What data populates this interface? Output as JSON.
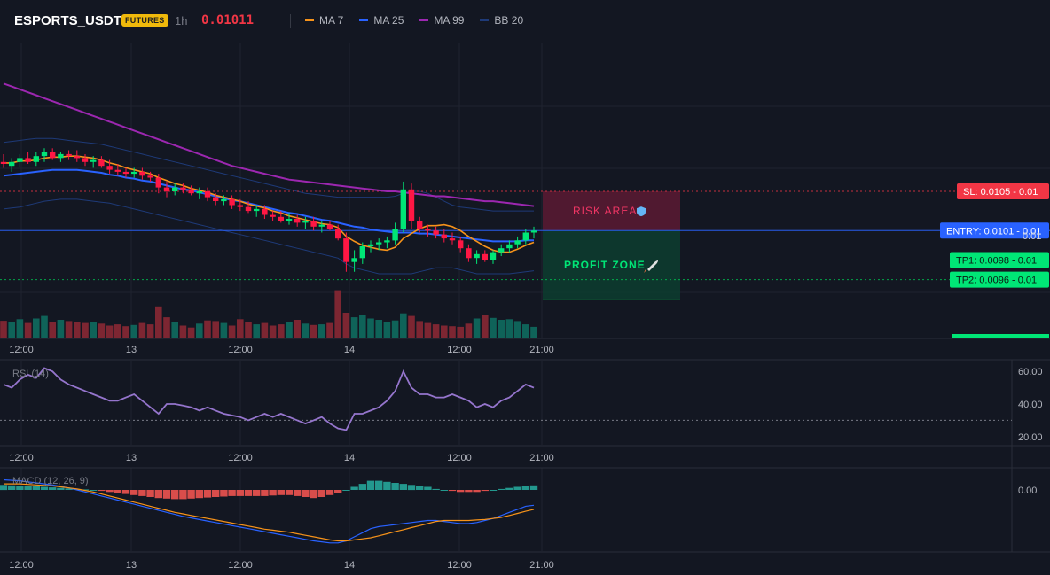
{
  "header": {
    "symbol": "ESPORTS_USDT",
    "badge": "FUTURES",
    "timeframe": "1h",
    "price": "0.01011",
    "legend": [
      {
        "label": "MA 7",
        "color": "#f7931a"
      },
      {
        "label": "MA 25",
        "color": "#2962ff"
      },
      {
        "label": "MA 99",
        "color": "#9c27b0"
      },
      {
        "label": "BB 20",
        "color": "#1e3a78"
      }
    ]
  },
  "colors": {
    "up": "#089981",
    "down": "#f23645",
    "up_bright": "#00e676",
    "down_bright": "#ff1744",
    "bg": "#131722",
    "grid": "#1f2330"
  },
  "time_axis": {
    "labels": [
      "12:00",
      "13",
      "12:00",
      "14",
      "12:00",
      "21:00"
    ]
  },
  "chart_data": [
    {
      "type": "candlestick",
      "name": "price",
      "ylim": [
        0.009,
        0.012
      ],
      "price_tag": "0.01",
      "levels": [
        {
          "label": "SL: 0.0105",
          "value": 0.0105,
          "tag": "0.01",
          "color": "#f23645"
        },
        {
          "label": "ENTRY: 0.0101",
          "value": 0.0101,
          "tag": "0.01",
          "color": "#2962ff"
        },
        {
          "label": "TP1: 0.0098",
          "value": 0.0098,
          "tag": "0.01",
          "color": "#00c853"
        },
        {
          "label": "TP2: 0.0096",
          "value": 0.0096,
          "tag": "0.01",
          "color": "#00c853"
        }
      ],
      "zones": {
        "risk_label": "RISK AREA",
        "profit_label": "PROFIT ZONE",
        "risk_top": 0.0105,
        "entry": 0.0101,
        "profit_bottom": 0.0094
      },
      "candles": [
        [
          0.0108,
          0.01088,
          0.01074,
          0.01078
        ],
        [
          0.01076,
          0.01084,
          0.0107,
          0.0108
        ],
        [
          0.0108,
          0.01088,
          0.01075,
          0.01084
        ],
        [
          0.01084,
          0.0109,
          0.01078,
          0.0108
        ],
        [
          0.0108,
          0.0109,
          0.01076,
          0.01086
        ],
        [
          0.01086,
          0.01094,
          0.0108,
          0.0109
        ],
        [
          0.0109,
          0.01094,
          0.01082,
          0.01084
        ],
        [
          0.01084,
          0.0109,
          0.0108,
          0.01088
        ],
        [
          0.01088,
          0.01092,
          0.01082,
          0.01086
        ],
        [
          0.01086,
          0.01092,
          0.0108,
          0.01084
        ],
        [
          0.01084,
          0.01088,
          0.01076,
          0.0108
        ],
        [
          0.0108,
          0.01086,
          0.01074,
          0.01082
        ],
        [
          0.01082,
          0.01086,
          0.01074,
          0.01076
        ],
        [
          0.01076,
          0.01082,
          0.01068,
          0.01072
        ],
        [
          0.01072,
          0.01078,
          0.01066,
          0.0107
        ],
        [
          0.0107,
          0.01074,
          0.01064,
          0.01068
        ],
        [
          0.01068,
          0.01074,
          0.01064,
          0.0107
        ],
        [
          0.0107,
          0.01074,
          0.01062,
          0.01066
        ],
        [
          0.01066,
          0.0107,
          0.0106,
          0.01064
        ],
        [
          0.01064,
          0.01068,
          0.01048,
          0.01054
        ],
        [
          0.01054,
          0.0106,
          0.01044,
          0.0105
        ],
        [
          0.0105,
          0.01058,
          0.01046,
          0.01054
        ],
        [
          0.01054,
          0.01058,
          0.01048,
          0.01052
        ],
        [
          0.01052,
          0.01056,
          0.01046,
          0.01048
        ],
        [
          0.01048,
          0.01054,
          0.01042,
          0.0105
        ],
        [
          0.0105,
          0.01054,
          0.0104,
          0.01044
        ],
        [
          0.01044,
          0.01048,
          0.01036,
          0.0104
        ],
        [
          0.0104,
          0.01046,
          0.01036,
          0.01042
        ],
        [
          0.01042,
          0.01046,
          0.01032,
          0.01036
        ],
        [
          0.01036,
          0.01042,
          0.0103,
          0.01034
        ],
        [
          0.01034,
          0.0104,
          0.01028,
          0.0103
        ],
        [
          0.0103,
          0.01036,
          0.01024,
          0.01032
        ],
        [
          0.01032,
          0.01036,
          0.01022,
          0.01026
        ],
        [
          0.01026,
          0.0103,
          0.0102,
          0.01024
        ],
        [
          0.01024,
          0.0103,
          0.01018,
          0.0102
        ],
        [
          0.0102,
          0.01028,
          0.01016,
          0.01022
        ],
        [
          0.01022,
          0.01026,
          0.01014,
          0.01018
        ],
        [
          0.01018,
          0.01024,
          0.01012,
          0.0102
        ],
        [
          0.0102,
          0.01024,
          0.0101,
          0.01014
        ],
        [
          0.01014,
          0.0102,
          0.01008,
          0.01016
        ],
        [
          0.01016,
          0.0102,
          0.0101,
          0.01012
        ],
        [
          0.01012,
          0.01016,
          0.01,
          0.01002
        ],
        [
          0.01002,
          0.01008,
          0.00968,
          0.00978
        ],
        [
          0.00978,
          0.0099,
          0.00968,
          0.00982
        ],
        [
          0.00982,
          0.00998,
          0.00976,
          0.00994
        ],
        [
          0.00994,
          0.01,
          0.00988,
          0.00996
        ],
        [
          0.00996,
          0.01002,
          0.0099,
          0.00998
        ],
        [
          0.00998,
          0.01004,
          0.00992,
          0.01
        ],
        [
          0.01,
          0.01018,
          0.00996,
          0.01012
        ],
        [
          0.01012,
          0.0106,
          0.01008,
          0.01052
        ],
        [
          0.01052,
          0.01058,
          0.01012,
          0.0102
        ],
        [
          0.0102,
          0.01024,
          0.01008,
          0.01012
        ],
        [
          0.01012,
          0.01016,
          0.01004,
          0.0101
        ],
        [
          0.0101,
          0.01014,
          0.01002,
          0.01006
        ],
        [
          0.01006,
          0.01012,
          0.00998,
          0.01002
        ],
        [
          0.01002,
          0.01008,
          0.00996,
          0.01
        ],
        [
          0.01,
          0.01004,
          0.00988,
          0.00992
        ],
        [
          0.00992,
          0.00996,
          0.00978,
          0.00982
        ],
        [
          0.00982,
          0.0099,
          0.00976,
          0.00986
        ],
        [
          0.00986,
          0.0099,
          0.00978,
          0.0098
        ],
        [
          0.0098,
          0.0099,
          0.00976,
          0.00988
        ],
        [
          0.00988,
          0.00996,
          0.00984,
          0.00992
        ],
        [
          0.00992,
          0.01,
          0.00988,
          0.00996
        ],
        [
          0.00996,
          0.01004,
          0.00992,
          0.01
        ],
        [
          0.01,
          0.01012,
          0.00996,
          0.01008
        ],
        [
          0.01008,
          0.01014,
          0.01002,
          0.0101
        ]
      ],
      "volumes": [
        55,
        52,
        60,
        48,
        62,
        70,
        50,
        58,
        54,
        50,
        48,
        52,
        46,
        40,
        44,
        38,
        42,
        48,
        44,
        100,
        66,
        52,
        40,
        34,
        46,
        56,
        54,
        48,
        40,
        60,
        52,
        44,
        48,
        40,
        44,
        50,
        58,
        46,
        42,
        44,
        48,
        150,
        80,
        66,
        72,
        62,
        58,
        52,
        56,
        78,
        70,
        54,
        48,
        44,
        40,
        38,
        36,
        46,
        62,
        74,
        64,
        58,
        60,
        54,
        44,
        36
      ],
      "ma7": [
        0.01079,
        0.01079,
        0.01081,
        0.01081,
        0.01082,
        0.01084,
        0.01085,
        0.01085,
        0.01086,
        0.01086,
        0.01085,
        0.01084,
        0.01082,
        0.01079,
        0.01077,
        0.01074,
        0.01072,
        0.0107,
        0.01068,
        0.01064,
        0.01061,
        0.01058,
        0.01056,
        0.01053,
        0.01051,
        0.01049,
        0.01046,
        0.01044,
        0.01042,
        0.0104,
        0.01037,
        0.01035,
        0.01033,
        0.0103,
        0.01028,
        0.01025,
        0.01023,
        0.01021,
        0.01019,
        0.01017,
        0.01016,
        0.01013,
        0.01004,
        0.00999,
        0.00995,
        0.00993,
        0.00991,
        0.0099,
        0.00993,
        0.01002,
        0.01007,
        0.01012,
        0.01015,
        0.01015,
        0.01016,
        0.01014,
        0.0101,
        0.01004,
        0.00999,
        0.00994,
        0.0099,
        0.00988,
        0.00988,
        0.00991,
        0.00995,
        0.00998
      ],
      "ma25": [
        0.01066,
        0.01067,
        0.01068,
        0.01069,
        0.0107,
        0.01071,
        0.01072,
        0.01072,
        0.01072,
        0.01072,
        0.01071,
        0.0107,
        0.01069,
        0.01067,
        0.01066,
        0.01064,
        0.01063,
        0.01061,
        0.0106,
        0.01058,
        0.01056,
        0.01054,
        0.01052,
        0.01051,
        0.01049,
        0.01047,
        0.01045,
        0.01043,
        0.01041,
        0.0104,
        0.01038,
        0.01036,
        0.01034,
        0.01032,
        0.0103,
        0.01028,
        0.01027,
        0.01025,
        0.01023,
        0.01021,
        0.0102,
        0.01018,
        0.01016,
        0.01014,
        0.01013,
        0.01011,
        0.0101,
        0.01009,
        0.01008,
        0.01008,
        0.01008,
        0.01007,
        0.01007,
        0.01006,
        0.01005,
        0.01004,
        0.01003,
        0.01002,
        0.01001,
        0.01,
        0.00999,
        0.00999,
        0.00999,
        0.00999,
        0.01,
        0.01
      ],
      "ma99": [
        0.0116,
        0.01157,
        0.01154,
        0.01151,
        0.01148,
        0.01145,
        0.01142,
        0.01139,
        0.01136,
        0.01133,
        0.0113,
        0.01127,
        0.01124,
        0.01121,
        0.01118,
        0.01115,
        0.01112,
        0.01109,
        0.01106,
        0.01103,
        0.011,
        0.01097,
        0.01094,
        0.01091,
        0.01088,
        0.01085,
        0.01082,
        0.01079,
        0.01076,
        0.01074,
        0.01072,
        0.0107,
        0.01068,
        0.01066,
        0.01064,
        0.01062,
        0.01061,
        0.0106,
        0.01059,
        0.01058,
        0.01057,
        0.01056,
        0.01055,
        0.01054,
        0.01053,
        0.01052,
        0.01051,
        0.0105,
        0.0105,
        0.01049,
        0.01048,
        0.01047,
        0.01046,
        0.01045,
        0.01045,
        0.01044,
        0.01043,
        0.01042,
        0.01041,
        0.0104,
        0.0104,
        0.01039,
        0.01038,
        0.01037,
        0.01036,
        0.01035
      ],
      "bb_upper": [
        0.011,
        0.01101,
        0.01102,
        0.01103,
        0.01104,
        0.01104,
        0.01104,
        0.01103,
        0.01102,
        0.01101,
        0.011,
        0.01099,
        0.01098,
        0.01096,
        0.01094,
        0.01092,
        0.0109,
        0.01088,
        0.01086,
        0.01084,
        0.01082,
        0.0108,
        0.01078,
        0.01076,
        0.01074,
        0.01072,
        0.0107,
        0.01068,
        0.01066,
        0.01064,
        0.01062,
        0.0106,
        0.01058,
        0.01056,
        0.01054,
        0.01052,
        0.0105,
        0.01048,
        0.01047,
        0.01046,
        0.01045,
        0.01044,
        0.01044,
        0.01044,
        0.01044,
        0.01044,
        0.01044,
        0.01044,
        0.01045,
        0.01048,
        0.0105,
        0.0105,
        0.01048,
        0.01044,
        0.0104,
        0.01036,
        0.01034,
        0.01033,
        0.01032,
        0.01031,
        0.0103,
        0.0103,
        0.0103,
        0.0103,
        0.0103,
        0.0103
      ],
      "bb_lower": [
        0.01032,
        0.01033,
        0.01034,
        0.01036,
        0.01038,
        0.0104,
        0.01041,
        0.01042,
        0.01042,
        0.01042,
        0.01041,
        0.0104,
        0.01039,
        0.01038,
        0.01036,
        0.01034,
        0.01032,
        0.0103,
        0.01028,
        0.01026,
        0.01024,
        0.01022,
        0.0102,
        0.01018,
        0.01016,
        0.01014,
        0.01012,
        0.0101,
        0.01008,
        0.01006,
        0.01004,
        0.01002,
        0.01,
        0.00998,
        0.00996,
        0.00994,
        0.00992,
        0.0099,
        0.00988,
        0.00986,
        0.00984,
        0.00982,
        0.00976,
        0.00972,
        0.0097,
        0.00968,
        0.00966,
        0.00966,
        0.00966,
        0.00966,
        0.00966,
        0.00968,
        0.0097,
        0.00972,
        0.00972,
        0.00972,
        0.0097,
        0.00968,
        0.00966,
        0.00966,
        0.00966,
        0.00966,
        0.00966,
        0.00967,
        0.00968,
        0.00969
      ]
    },
    {
      "type": "line",
      "name": "RSI (14)",
      "title": "RSI (14)",
      "ylim": [
        15,
        65
      ],
      "ticks": [
        "60.00",
        "40.00",
        "20.00"
      ],
      "tick_values": [
        60,
        40,
        20
      ],
      "reference": 30,
      "values": [
        52,
        50,
        55,
        58,
        56,
        62,
        60,
        55,
        52,
        50,
        48,
        46,
        44,
        42,
        42,
        44,
        46,
        42,
        38,
        34,
        40,
        40,
        39,
        38,
        36,
        38,
        36,
        34,
        33,
        32,
        30,
        32,
        34,
        32,
        34,
        32,
        30,
        28,
        30,
        32,
        28,
        25,
        24,
        34,
        34,
        36,
        38,
        42,
        48,
        60,
        50,
        46,
        46,
        44,
        44,
        46,
        44,
        42,
        38,
        40,
        38,
        42,
        44,
        48,
        52,
        50
      ]
    },
    {
      "type": "bar",
      "name": "MACD (12, 26, 9)",
      "title": "MACD (12, 26, 9)",
      "ylim": [
        -0.00012,
        4e-05
      ],
      "ticks": [
        "0.00"
      ],
      "tick_values": [
        0
      ],
      "histogram": [
        1e-05,
        9e-06,
        8e-06,
        7e-06,
        7e-06,
        6e-06,
        5e-06,
        4e-06,
        3e-06,
        2e-06,
        1e-06,
        0.0,
        -2e-06,
        -4e-06,
        -6e-06,
        -8e-06,
        -1e-05,
        -1.2e-05,
        -1.4e-05,
        -1.6e-05,
        -1.7e-05,
        -1.8e-05,
        -1.8e-05,
        -1.7e-05,
        -1.6e-05,
        -1.5e-05,
        -1.4e-05,
        -1.3e-05,
        -1.2e-05,
        -1.2e-05,
        -1.2e-05,
        -1.2e-05,
        -1.2e-05,
        -1.1e-05,
        -1e-05,
        -1e-05,
        -1.2e-05,
        -1.4e-05,
        -1.6e-05,
        -1.4e-05,
        -1e-05,
        -6e-06,
        0.0,
        6e-06,
        1.2e-05,
        1.8e-05,
        1.8e-05,
        1.6e-05,
        1.4e-05,
        1.2e-05,
        1e-05,
        8e-06,
        6e-06,
        2e-06,
        0.0,
        -2e-06,
        -4e-06,
        -4e-06,
        -4e-06,
        -2e-06,
        0.0,
        2e-06,
        4e-06,
        6e-06,
        8e-06,
        9e-06
      ],
      "macd": [
        2e-05,
        1.9e-05,
        1.8e-05,
        1.6e-05,
        1.4e-05,
        1.2e-05,
        1e-05,
        7e-06,
        4e-06,
        0.0,
        -4e-06,
        -8e-06,
        -1.2e-05,
        -1.6e-05,
        -2e-05,
        -2.4e-05,
        -2.8e-05,
        -3.2e-05,
        -3.6e-05,
        -4e-05,
        -4.4e-05,
        -4.8e-05,
        -5.2e-05,
        -5.5e-05,
        -5.8e-05,
        -6.1e-05,
        -6.4e-05,
        -6.7e-05,
        -7e-05,
        -7.3e-05,
        -7.6e-05,
        -7.9e-05,
        -8.2e-05,
        -8.5e-05,
        -8.8e-05,
        -9.1e-05,
        -9.4e-05,
        -9.7e-05,
        -0.0001,
        -0.000102,
        -0.000104,
        -0.000104,
        -0.0001,
        -9.2e-05,
        -8.4e-05,
        -7.6e-05,
        -7.2e-05,
        -7e-05,
        -6.8e-05,
        -6.6e-05,
        -6.4e-05,
        -6.2e-05,
        -6e-05,
        -6e-05,
        -6.2e-05,
        -6.4e-05,
        -6.6e-05,
        -6.6e-05,
        -6.4e-05,
        -6e-05,
        -5.6e-05,
        -5e-05,
        -4.4e-05,
        -3.8e-05,
        -3.2e-05,
        -3e-05
      ],
      "signal": [
        1.2e-05,
        1.2e-05,
        1.2e-05,
        1.1e-05,
        1e-05,
        9e-06,
        8e-06,
        6e-06,
        4e-06,
        2e-06,
        -1e-06,
        -4e-06,
        -8e-06,
        -1.2e-05,
        -1.6e-05,
        -2e-05,
        -2.4e-05,
        -2.8e-05,
        -3.2e-05,
        -3.6e-05,
        -4e-05,
        -4.4e-05,
        -4.7e-05,
        -5e-05,
        -5.3e-05,
        -5.6e-05,
        -5.9e-05,
        -6.2e-05,
        -6.5e-05,
        -6.8e-05,
        -7.1e-05,
        -7.4e-05,
        -7.7e-05,
        -7.9e-05,
        -8.1e-05,
        -8.3e-05,
        -8.6e-05,
        -8.9e-05,
        -9.2e-05,
        -9.5e-05,
        -9.8e-05,
        -0.0001,
        -0.0001,
        -9.8e-05,
        -9.6e-05,
        -9.4e-05,
        -9e-05,
        -8.6e-05,
        -8.2e-05,
        -7.8e-05,
        -7.4e-05,
        -7e-05,
        -6.6e-05,
        -6.2e-05,
        -6e-05,
        -6e-05,
        -6e-05,
        -6e-05,
        -5.9e-05,
        -5.8e-05,
        -5.6e-05,
        -5.4e-05,
        -5e-05,
        -4.6e-05,
        -4.2e-05,
        -3.8e-05
      ]
    }
  ]
}
